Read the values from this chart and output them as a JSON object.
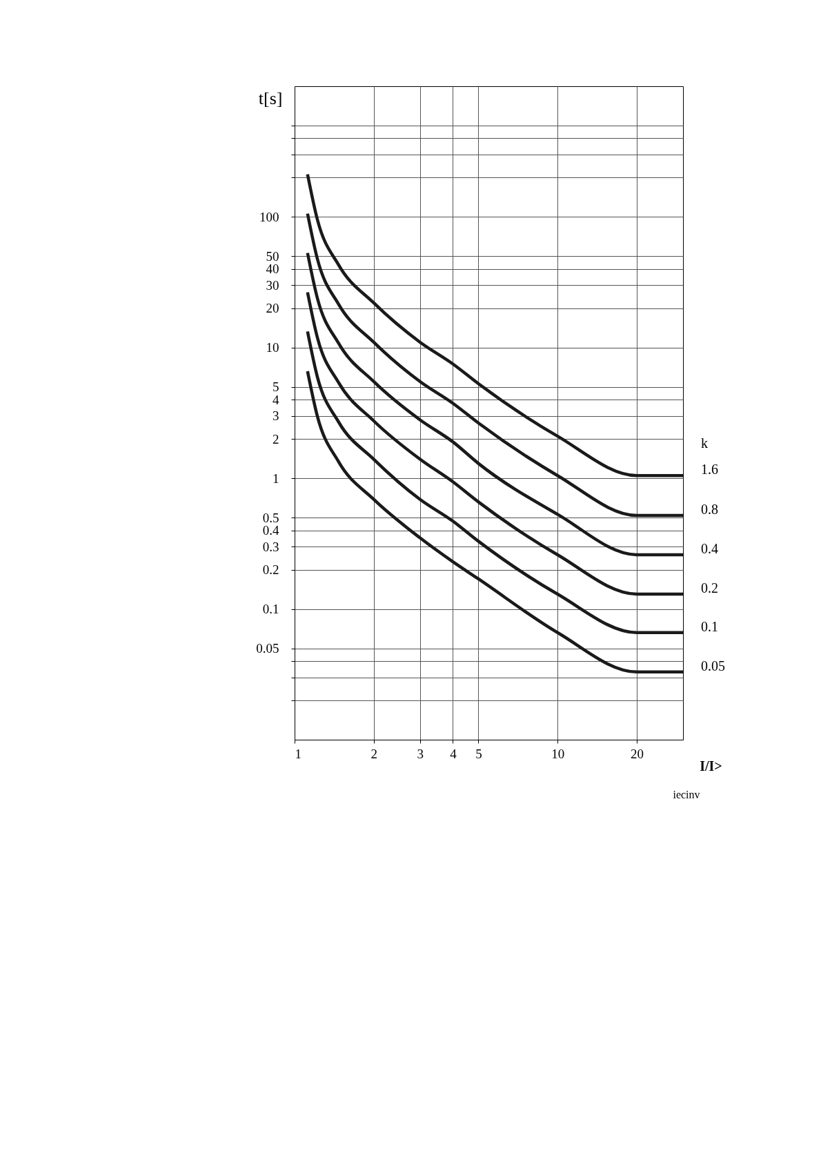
{
  "chart_data": {
    "type": "line",
    "xlabel": "I/I>",
    "ylabel": "t[s]",
    "legend_title": "k",
    "x": [
      1.12,
      1.22,
      1.47,
      2,
      3,
      4,
      5,
      10,
      20,
      30
    ],
    "series": [
      {
        "name": "1.6",
        "color": "#1a1a1a",
        "values": [
          212,
          96,
          43,
          22,
          11,
          7.5,
          5.3,
          2.1,
          1.05,
          1.05
        ]
      },
      {
        "name": "0.8",
        "color": "#1a1a1a",
        "values": [
          106,
          48,
          21.5,
          11,
          5.5,
          3.75,
          2.65,
          1.05,
          0.52,
          0.52
        ]
      },
      {
        "name": "0.4",
        "color": "#1a1a1a",
        "values": [
          53,
          24,
          10.8,
          5.5,
          2.8,
          1.9,
          1.3,
          0.53,
          0.26,
          0.26
        ]
      },
      {
        "name": "0.2",
        "color": "#1a1a1a",
        "values": [
          26.5,
          12,
          5.4,
          2.75,
          1.4,
          0.94,
          0.66,
          0.26,
          0.13,
          0.13
        ]
      },
      {
        "name": "0.1",
        "color": "#1a1a1a",
        "values": [
          13.3,
          6,
          2.7,
          1.4,
          0.69,
          0.47,
          0.33,
          0.13,
          0.066,
          0.066
        ]
      },
      {
        "name": "0.05",
        "color": "#1a1a1a",
        "values": [
          6.6,
          3,
          1.34,
          0.69,
          0.35,
          0.23,
          0.17,
          0.066,
          0.033,
          0.033
        ]
      }
    ],
    "xlim": [
      1,
      30
    ],
    "ylim": [
      0.01,
      1000
    ],
    "log": "xy",
    "xticks": [
      1,
      2,
      3,
      4,
      5,
      10,
      20
    ],
    "yticks": [
      {
        "value": 500,
        "label": null
      },
      {
        "value": 400,
        "label": null
      },
      {
        "value": 300,
        "label": null
      },
      {
        "value": 200,
        "label": null
      },
      100,
      50,
      40,
      30,
      20,
      10,
      5,
      4,
      3,
      2,
      1,
      0.5,
      0.4,
      0.3,
      0.2,
      0.1,
      0.05,
      {
        "value": 0.04,
        "label": null
      },
      {
        "value": 0.03,
        "label": null
      },
      {
        "value": 0.02,
        "label": null
      }
    ],
    "grid": true,
    "legend": false,
    "marker": "none",
    "line_style": "solid",
    "annotations": [
      "iecinv"
    ]
  }
}
